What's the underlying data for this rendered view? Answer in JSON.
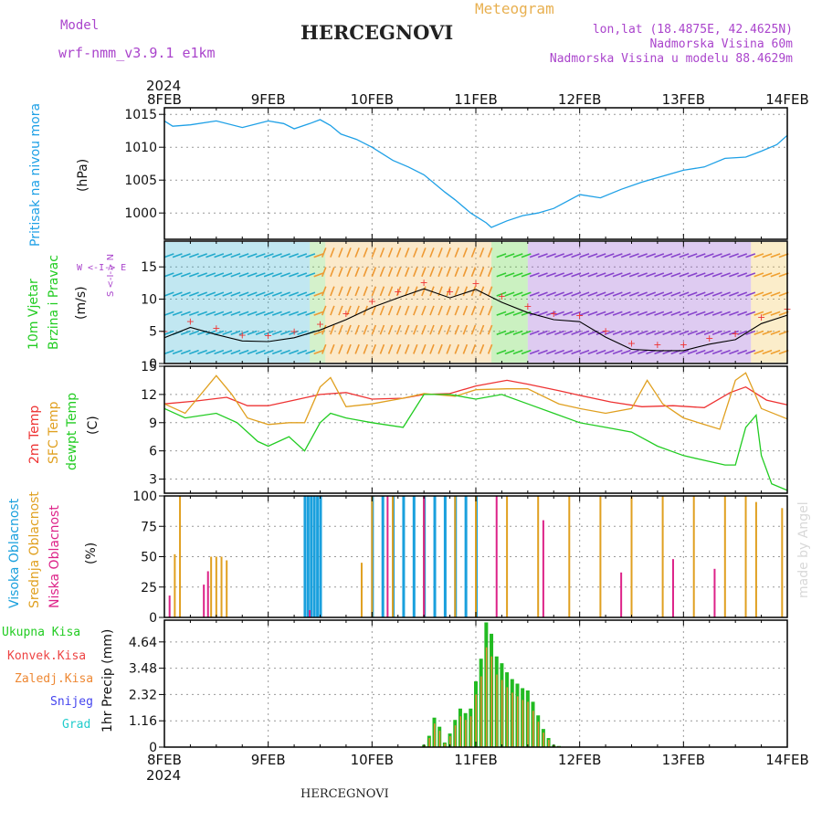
{
  "header": {
    "model_label": "Model",
    "model_name": "wrf-nmm_v3.9.1 e1km",
    "title": "HERCEGNOVI",
    "subtitle": "Meteogram",
    "coords": "lon,lat (18.4875E, 42.4625N)",
    "altitude": "Nadmorska Visina 60m",
    "model_altitude": "Nadmorska Visina u modelu 88.4629m",
    "year_top": "2024",
    "year_bottom": "2024",
    "footer_title": "HERCEGNOVI",
    "watermark": "made by Angel"
  },
  "colors": {
    "pressure": "#1ea0e6",
    "temp2m": "#ee3333",
    "sfc_temp": "#e0a020",
    "dewpoint": "#22cc22",
    "cloud_high": "#1aa0dd",
    "cloud_mid": "#e0a020",
    "cloud_low": "#dd2288",
    "precip_total": "#22bb22",
    "precip_conv": "#ee4444",
    "precip_strat": "#ee8833",
    "snow": "#4444ee",
    "hail": "#22cccc",
    "wind_purple": "#aa44cc"
  },
  "panel_labels": {
    "pressure": {
      "title": "Pritisak na nivou mora",
      "unit": "(hPa)"
    },
    "wind": {
      "title_line1": "10m Vjetar",
      "title_line2": "Brzina i Pravac",
      "unit": "(m/s)",
      "dir_key": "W <-I-> E",
      "dir_key2": "S <-I-> N"
    },
    "temp": {
      "t2m": "2m Temp",
      "sfc": "SFC Temp",
      "dew": "dewpt Temp",
      "unit": "(C)"
    },
    "cloud": {
      "high": "Visoka Oblacnost",
      "mid": "Srednja Oblacnost",
      "low": "Niska Oblacnost",
      "unit": "(%)"
    },
    "precip": {
      "total": "Ukupna Kisa",
      "conv": "Konvek.Kisa",
      "strat": "Zaledj.Kisa",
      "snow": "Snijeg",
      "hail": "Grad",
      "unit": "1hr Precip (mm)"
    }
  },
  "chart_data": [
    {
      "type": "line",
      "panel": "pressure",
      "x_dates": [
        "8FEB",
        "9FEB",
        "10FEB",
        "11FEB",
        "12FEB",
        "13FEB",
        "14FEB"
      ],
      "ylim": [
        996,
        1016
      ],
      "yticks": [
        1000,
        1005,
        1010,
        1015
      ],
      "series": [
        {
          "x": [
            0,
            0.08,
            0.25,
            0.5,
            0.75,
            1.0,
            1.15,
            1.25,
            1.4,
            1.5,
            1.6,
            1.7,
            1.85,
            2.0,
            2.2,
            2.35,
            2.5,
            2.7,
            2.8,
            2.95,
            3.1,
            3.15,
            3.3,
            3.45,
            3.6,
            3.75,
            4.0,
            4.2,
            4.4,
            4.6,
            4.8,
            5.0,
            5.2,
            5.4,
            5.6,
            5.75,
            5.9,
            6.0
          ],
          "y": [
            1014.0,
            1013.2,
            1013.4,
            1014.0,
            1013.0,
            1014.0,
            1013.6,
            1012.8,
            1013.6,
            1014.2,
            1013.3,
            1012.0,
            1011.2,
            1010.0,
            1008.0,
            1007.0,
            1005.8,
            1003.2,
            1002.0,
            1000.0,
            998.5,
            997.8,
            998.8,
            999.6,
            1000.0,
            1000.7,
            1002.8,
            1002.3,
            1003.6,
            1004.7,
            1005.6,
            1006.5,
            1007.0,
            1008.3,
            1008.5,
            1009.4,
            1010.4,
            1011.8
          ]
        }
      ]
    },
    {
      "type": "line",
      "panel": "wind",
      "ylim": [
        0,
        19
      ],
      "yticks": [
        0,
        5,
        10,
        15
      ],
      "series": [
        {
          "name": "10m Vjetar",
          "x": [
            0,
            0.25,
            0.5,
            0.75,
            1.0,
            1.25,
            1.5,
            1.75,
            2.0,
            2.25,
            2.5,
            2.75,
            3.0,
            3.25,
            3.5,
            3.75,
            4.0,
            4.25,
            4.5,
            4.75,
            5.0,
            5.25,
            5.5,
            5.75,
            6.0
          ],
          "y": [
            4.0,
            5.6,
            4.5,
            3.5,
            3.4,
            4.0,
            5.2,
            6.8,
            8.7,
            10.2,
            11.6,
            10.2,
            11.5,
            9.5,
            7.9,
            6.8,
            6.5,
            4.1,
            2.2,
            2.0,
            2.0,
            3.0,
            3.7,
            6.2,
            7.5
          ]
        }
      ]
    },
    {
      "type": "line",
      "panel": "temperature",
      "ylim": [
        1.5,
        15
      ],
      "yticks": [
        3,
        6,
        9,
        12,
        15
      ],
      "series": [
        {
          "name": "2m Temp",
          "x": [
            0,
            0.3,
            0.6,
            0.8,
            1.0,
            1.25,
            1.5,
            1.75,
            2.0,
            2.3,
            2.5,
            2.75,
            3.0,
            3.3,
            3.5,
            3.8,
            4.0,
            4.3,
            4.6,
            4.9,
            5.2,
            5.45,
            5.6,
            5.8,
            6.0
          ],
          "y": [
            11.0,
            11.3,
            11.7,
            10.8,
            10.8,
            11.4,
            12.0,
            12.2,
            11.5,
            11.6,
            12.0,
            12.1,
            12.9,
            13.5,
            13.1,
            12.4,
            11.9,
            11.2,
            10.7,
            10.8,
            10.6,
            12.2,
            12.8,
            11.4,
            10.9
          ]
        },
        {
          "name": "SFC Temp",
          "x": [
            0,
            0.2,
            0.5,
            0.65,
            0.8,
            1.0,
            1.2,
            1.35,
            1.5,
            1.6,
            1.75,
            2.0,
            2.3,
            2.5,
            2.8,
            3.0,
            3.3,
            3.5,
            3.8,
            4.0,
            4.25,
            4.5,
            4.65,
            4.8,
            5.0,
            5.2,
            5.35,
            5.5,
            5.6,
            5.75,
            6.0
          ],
          "y": [
            11.0,
            10.0,
            14.0,
            12.0,
            9.5,
            8.8,
            9.0,
            9.0,
            12.8,
            13.8,
            10.7,
            11.0,
            11.6,
            12.1,
            11.8,
            12.5,
            12.6,
            12.6,
            11.0,
            10.5,
            10.0,
            10.5,
            13.5,
            11.0,
            9.5,
            8.8,
            8.3,
            13.5,
            14.3,
            10.5,
            9.4
          ]
        },
        {
          "name": "dewpt Temp",
          "x": [
            0,
            0.2,
            0.5,
            0.7,
            0.9,
            1.0,
            1.2,
            1.35,
            1.5,
            1.6,
            1.75,
            2.0,
            2.3,
            2.5,
            2.75,
            3.0,
            3.25,
            3.5,
            3.75,
            4.0,
            4.25,
            4.5,
            4.75,
            5.0,
            5.2,
            5.4,
            5.5,
            5.6,
            5.7,
            5.75,
            5.85,
            6.0
          ],
          "y": [
            10.5,
            9.5,
            10.0,
            9.0,
            7.0,
            6.5,
            7.5,
            6.0,
            9.0,
            10.0,
            9.5,
            9.0,
            8.5,
            12.0,
            12.0,
            11.5,
            12.0,
            11.0,
            10.0,
            9.0,
            8.5,
            8.0,
            6.5,
            5.5,
            5.0,
            4.5,
            4.5,
            8.5,
            9.8,
            5.5,
            2.5,
            1.8
          ]
        }
      ]
    },
    {
      "type": "bar",
      "panel": "cloud",
      "ylim": [
        0,
        100
      ],
      "yticks": [
        0,
        25,
        50,
        75,
        100
      ],
      "series": [
        {
          "name": "Visoka Oblacnost",
          "x": [
            1.35,
            1.38,
            1.41,
            1.44,
            1.47,
            1.5,
            2.0,
            2.1,
            2.2,
            2.3,
            2.4,
            2.5,
            2.6,
            2.7,
            2.8,
            2.9,
            3.0
          ],
          "y": [
            100,
            100,
            100,
            100,
            100,
            100,
            100,
            100,
            100,
            100,
            100,
            100,
            100,
            100,
            100,
            100,
            100
          ]
        },
        {
          "name": "Srednja Oblacnost",
          "x": [
            0.1,
            0.15,
            0.45,
            0.5,
            0.55,
            0.6,
            1.9,
            2.0,
            2.2,
            2.5,
            2.8,
            3.0,
            3.3,
            3.6,
            3.9,
            4.2,
            4.5,
            4.8,
            5.1,
            5.4,
            5.6,
            5.7,
            5.95
          ],
          "y": [
            52,
            100,
            50,
            50,
            50,
            47,
            45,
            100,
            100,
            100,
            100,
            100,
            100,
            100,
            100,
            100,
            100,
            100,
            100,
            100,
            100,
            95,
            90
          ]
        },
        {
          "name": "Niska Oblacnost",
          "x": [
            0.05,
            0.38,
            0.42,
            1.4,
            2.15,
            2.5,
            3.2,
            3.65,
            4.4,
            4.9,
            5.3
          ],
          "y": [
            18,
            27,
            38,
            6,
            100,
            100,
            100,
            80,
            37,
            48,
            40
          ]
        }
      ]
    },
    {
      "type": "bar",
      "panel": "precipitation",
      "ylim": [
        0,
        5.6
      ],
      "yticks": [
        0,
        1.16,
        2.32,
        3.48,
        4.64
      ],
      "series": [
        {
          "name": "Ukupna Kisa",
          "x": [
            2.5,
            2.55,
            2.6,
            2.65,
            2.7,
            2.75,
            2.8,
            2.85,
            2.9,
            2.95,
            3.0,
            3.05,
            3.1,
            3.15,
            3.2,
            3.25,
            3.3,
            3.35,
            3.4,
            3.45,
            3.5,
            3.55,
            3.6,
            3.65,
            3.7,
            3.75,
            3.8
          ],
          "y": [
            0.1,
            0.5,
            1.3,
            0.9,
            0.2,
            0.6,
            1.2,
            1.7,
            1.5,
            1.7,
            2.9,
            3.9,
            5.5,
            5.0,
            4.0,
            3.7,
            3.3,
            3.0,
            2.8,
            2.6,
            2.5,
            2.0,
            1.4,
            0.8,
            0.4,
            0.1,
            0.05
          ]
        }
      ]
    }
  ]
}
